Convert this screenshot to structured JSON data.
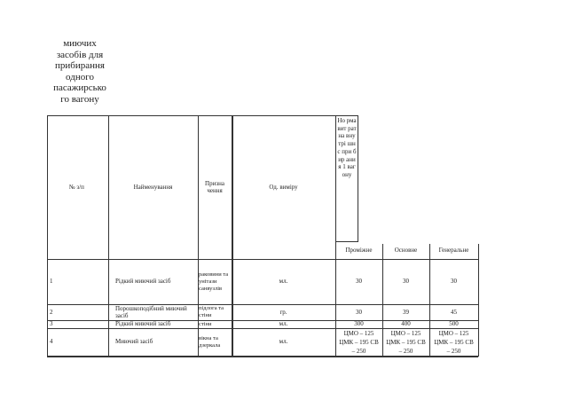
{
  "title": "миючих засобів для прибирання одного пасажирсько го вагону",
  "headers": {
    "num": "№ з/п",
    "name": "Найменування",
    "purpose": "Призна чення",
    "unit": "Од. виміру",
    "norm": "Но рма вит рат на вну трі шн с при бир ани я 1 ваг ону",
    "types": [
      "Проміжне",
      "Основне",
      "Генеральне"
    ]
  },
  "rows": [
    {
      "num": "1",
      "name": "Рідкий миючий засіб",
      "purpose": "раковини та унітази санвузлів",
      "unit": "мл.",
      "values": [
        "30",
        "30",
        "30"
      ]
    },
    {
      "num": "2",
      "name": "Порошкоподібний миючий засіб",
      "purpose": "підлога та стіни",
      "unit": "гр.",
      "values": [
        "30",
        "39",
        "45"
      ]
    },
    {
      "num": "3",
      "name": "Рідкий миючий засіб",
      "purpose": "стіни",
      "unit": "мл.",
      "values": [
        "300",
        "400",
        "500"
      ]
    },
    {
      "num": "4",
      "name": "Миючий засіб",
      "purpose": "вікна та дзеркала",
      "unit": "мл.",
      "values": [
        "ЦМО – 125 ЦМК – 195 СВ – 250",
        "ЦМО – 125 ЦМК – 195 СВ – 250",
        "ЦМО – 125 ЦМК – 195 СВ – 250"
      ]
    }
  ]
}
